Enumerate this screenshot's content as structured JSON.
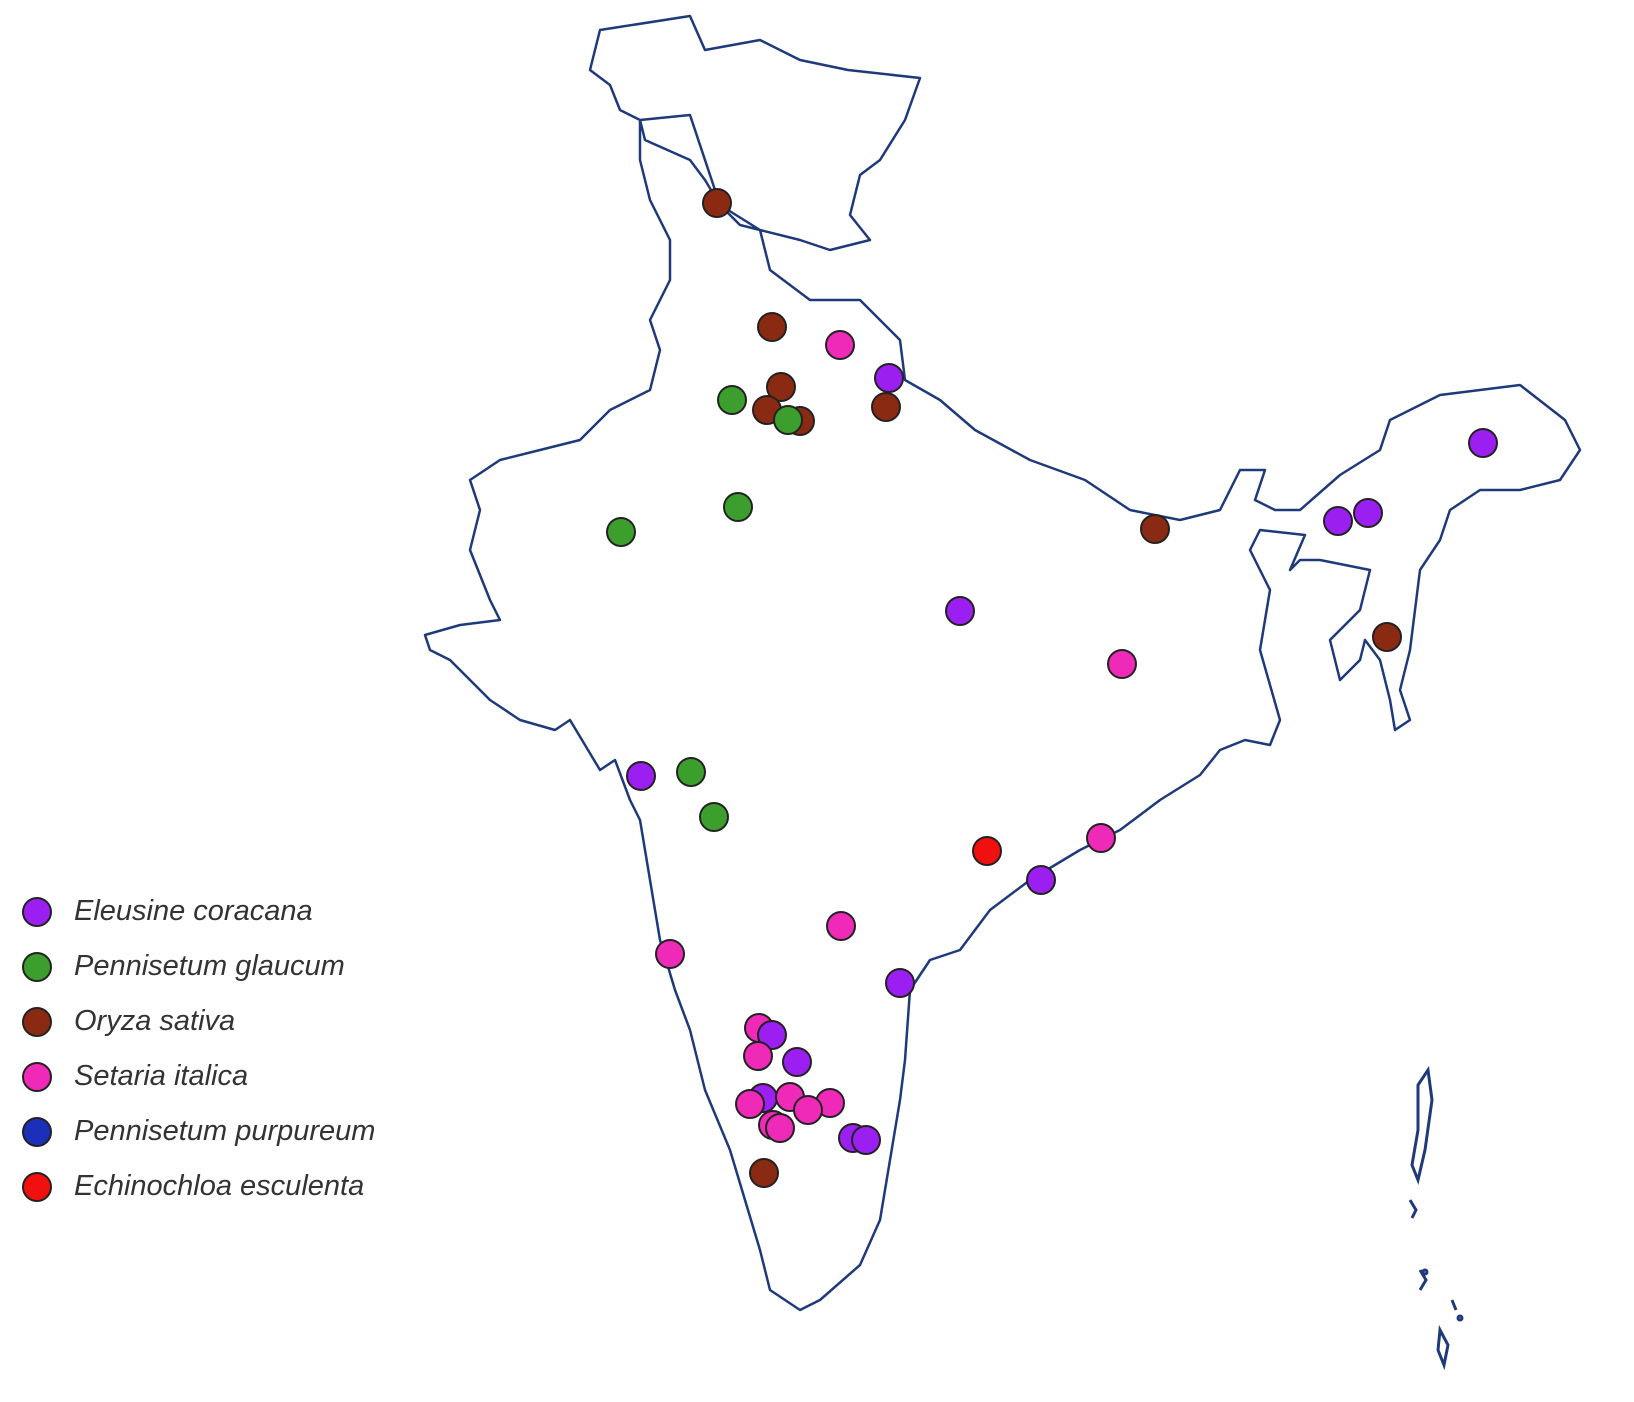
{
  "map": {
    "border_color": "#1f3a7a",
    "district_color": "#9a9a9a"
  },
  "legend": {
    "items": [
      {
        "label": "Eleusine coracana",
        "color": "#9b1ff0"
      },
      {
        "label": "Pennisetum glaucum",
        "color": "#3c9e2c"
      },
      {
        "label": "Oryza sativa",
        "color": "#8b2a12"
      },
      {
        "label": "Setaria italica",
        "color": "#f02ab8"
      },
      {
        "label": "Pennisetum purpureum",
        "color": "#1b2fb8"
      },
      {
        "label": "Echinochloa esculenta",
        "color": "#f01010"
      }
    ]
  }
}
